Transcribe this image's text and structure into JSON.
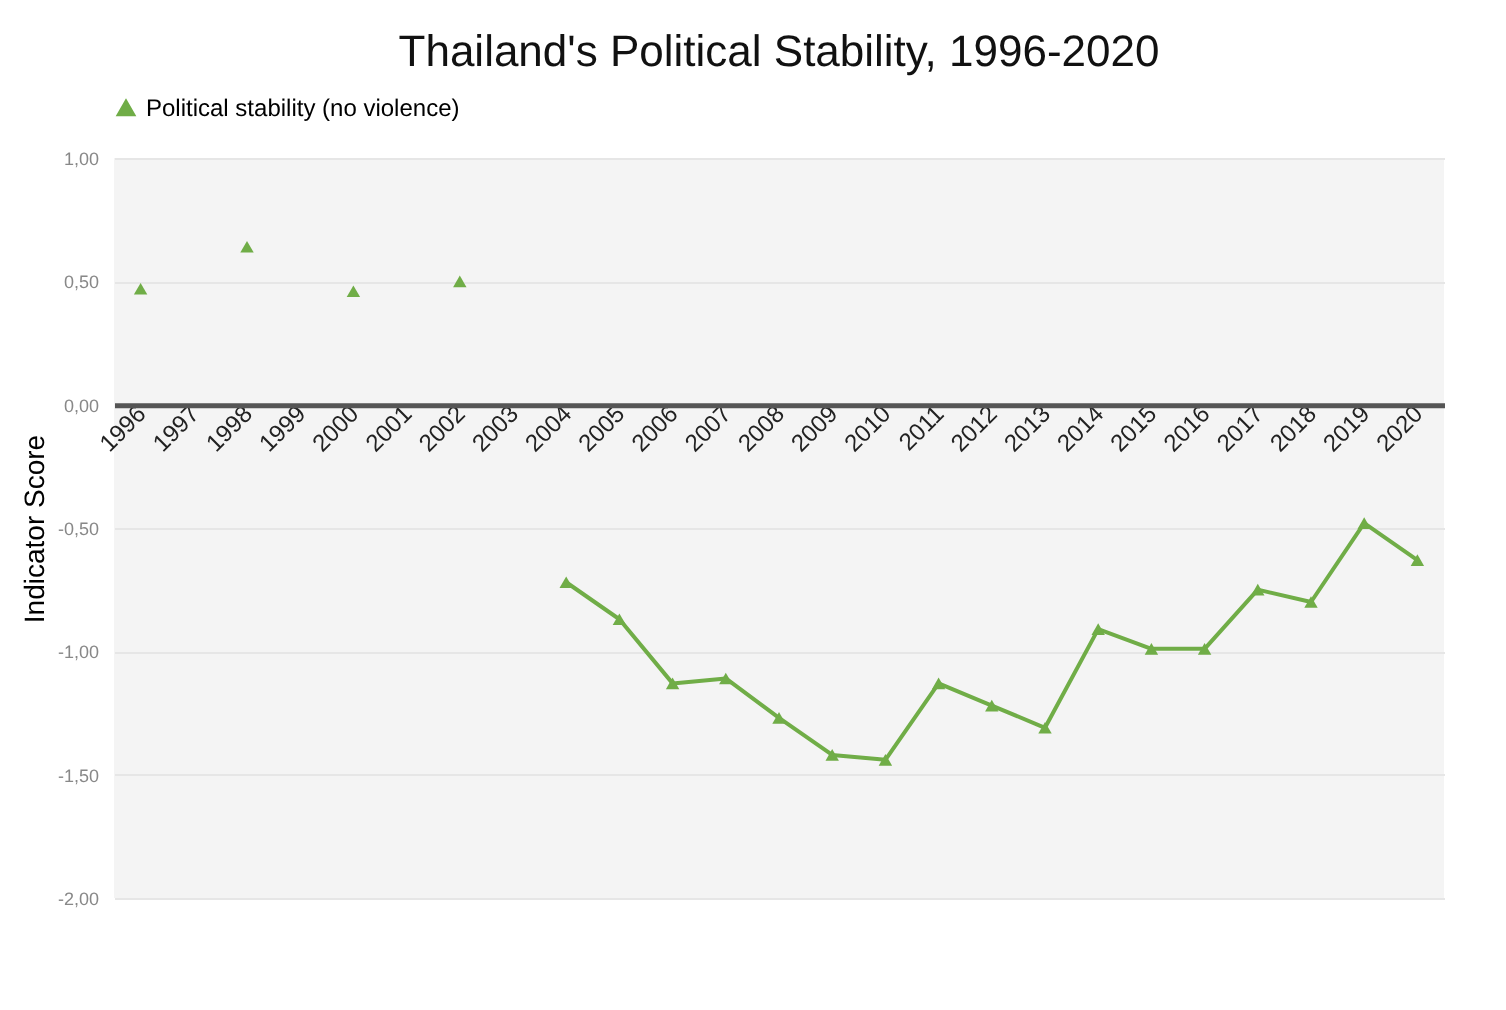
{
  "chart_data": {
    "type": "line",
    "title": "Thailand's Political Stability, 1996-2020",
    "ylabel": "Indicator Score",
    "categories": [
      "1996",
      "1997",
      "1998",
      "1999",
      "2000",
      "2001",
      "2002",
      "2003",
      "2004",
      "2005",
      "2006",
      "2007",
      "2008",
      "2009",
      "2010",
      "2011",
      "2012",
      "2013",
      "2014",
      "2015",
      "2016",
      "2017",
      "2018",
      "2019",
      "2020"
    ],
    "series": [
      {
        "name": "Political stability (no violence)",
        "color": "#70ad47",
        "values": [
          0.47,
          null,
          0.64,
          null,
          0.46,
          null,
          0.5,
          null,
          -0.72,
          -0.87,
          -1.13,
          -1.11,
          -1.27,
          -1.42,
          -1.44,
          -1.13,
          -1.22,
          -1.31,
          -0.91,
          -0.99,
          -0.99,
          -0.75,
          -0.8,
          -0.48,
          -0.63
        ]
      }
    ],
    "ylim": [
      -2,
      1
    ],
    "yticks": [
      {
        "value": -2,
        "label": "-2,00"
      },
      {
        "value": -1.5,
        "label": "-1,50"
      },
      {
        "value": -1,
        "label": "-1,00"
      },
      {
        "value": -0.5,
        "label": "-0,50"
      },
      {
        "value": 0,
        "label": "0,00"
      },
      {
        "value": 0.5,
        "label": "0,50"
      },
      {
        "value": 1,
        "label": "1,00"
      }
    ],
    "grid": "y",
    "legend": "top",
    "marker": "triangle",
    "line_style": "solid"
  }
}
